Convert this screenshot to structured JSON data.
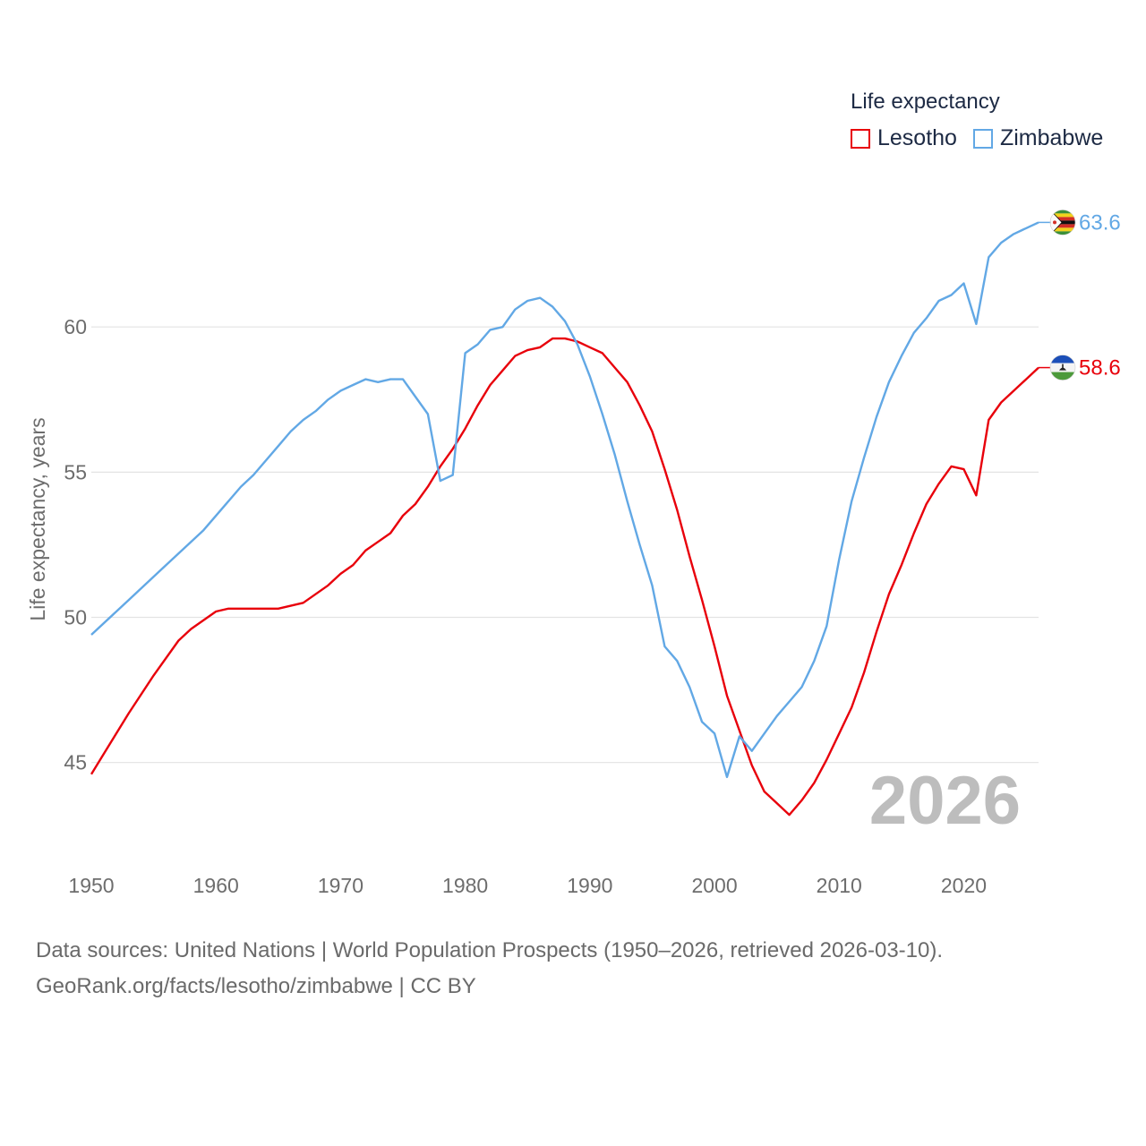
{
  "chart_data": {
    "type": "line",
    "ylabel": "Life expectancy, years",
    "xlim": [
      1950,
      2026
    ],
    "ylim": [
      42,
      65
    ],
    "x_ticks": [
      1950,
      1960,
      1970,
      1980,
      1990,
      2000,
      2010,
      2020
    ],
    "y_ticks": [
      45,
      50,
      55,
      60
    ],
    "grid": true,
    "year_display": "2026",
    "legend": {
      "title": "Life expectancy",
      "position": "top-right"
    },
    "series": [
      {
        "name": "Lesotho",
        "color": "#e8000b",
        "end_label": "58.6",
        "flag": "lesotho-flag",
        "x": [
          1950,
          1951,
          1953,
          1955,
          1957,
          1958,
          1960,
          1961,
          1963,
          1965,
          1967,
          1969,
          1970,
          1971,
          1972,
          1973,
          1974,
          1975,
          1976,
          1977,
          1978,
          1979,
          1980,
          1981,
          1982,
          1983,
          1984,
          1985,
          1986,
          1987,
          1988,
          1989,
          1990,
          1991,
          1992,
          1993,
          1994,
          1995,
          1996,
          1997,
          1998,
          1999,
          2000,
          2001,
          2002,
          2003,
          2004,
          2005,
          2006,
          2007,
          2008,
          2009,
          2010,
          2011,
          2012,
          2013,
          2014,
          2015,
          2016,
          2017,
          2018,
          2019,
          2020,
          2021,
          2022,
          2023,
          2024,
          2025,
          2026
        ],
        "values": [
          44.6,
          45.3,
          46.7,
          48.0,
          49.2,
          49.6,
          50.2,
          50.3,
          50.3,
          50.3,
          50.5,
          51.1,
          51.5,
          51.8,
          52.3,
          52.6,
          52.9,
          53.5,
          53.9,
          54.5,
          55.2,
          55.8,
          56.5,
          57.3,
          58.0,
          58.5,
          59.0,
          59.2,
          59.3,
          59.6,
          59.6,
          59.5,
          59.3,
          59.1,
          58.6,
          58.1,
          57.3,
          56.4,
          55.1,
          53.7,
          52.1,
          50.6,
          49.0,
          47.3,
          46.1,
          44.9,
          44.0,
          43.6,
          43.2,
          43.7,
          44.3,
          45.1,
          46.0,
          46.9,
          48.1,
          49.5,
          50.8,
          51.8,
          52.9,
          53.9,
          54.6,
          55.2,
          55.1,
          54.2,
          56.8,
          57.4,
          57.8,
          58.2,
          58.6
        ]
      },
      {
        "name": "Zimbabwe",
        "color": "#62a8e5",
        "end_label": "63.6",
        "flag": "zimbabwe-flag",
        "x": [
          1950,
          1953,
          1956,
          1959,
          1962,
          1963,
          1965,
          1966,
          1967,
          1968,
          1969,
          1970,
          1971,
          1972,
          1973,
          1974,
          1975,
          1976,
          1977,
          1978,
          1979,
          1980,
          1981,
          1982,
          1983,
          1984,
          1985,
          1986,
          1987,
          1988,
          1989,
          1990,
          1991,
          1992,
          1993,
          1994,
          1995,
          1996,
          1997,
          1998,
          1999,
          2000,
          2001,
          2002,
          2003,
          2004,
          2005,
          2006,
          2007,
          2008,
          2009,
          2010,
          2011,
          2012,
          2013,
          2014,
          2015,
          2016,
          2017,
          2018,
          2019,
          2020,
          2021,
          2022,
          2023,
          2024,
          2025,
          2026
        ],
        "values": [
          49.4,
          50.6,
          51.8,
          53.0,
          54.5,
          54.9,
          55.9,
          56.4,
          56.8,
          57.1,
          57.5,
          57.8,
          58.0,
          58.2,
          58.1,
          58.2,
          58.2,
          57.6,
          57.0,
          54.7,
          54.9,
          59.1,
          59.4,
          59.9,
          60.0,
          60.6,
          60.9,
          61.0,
          60.7,
          60.2,
          59.4,
          58.3,
          57.0,
          55.6,
          54.0,
          52.5,
          51.1,
          49.0,
          48.5,
          47.6,
          46.4,
          46.0,
          44.5,
          45.9,
          45.4,
          46.0,
          46.6,
          47.1,
          47.6,
          48.5,
          49.7,
          52.0,
          54.0,
          55.5,
          56.9,
          58.1,
          59.0,
          59.8,
          60.3,
          60.9,
          61.1,
          61.5,
          60.1,
          62.4,
          62.9,
          63.2,
          63.4,
          63.6
        ]
      }
    ]
  },
  "footer": {
    "line1": "Data sources: United Nations | World Population Prospects (1950–2026, retrieved 2026-03-10).",
    "line2": "GeoRank.org/facts/lesotho/zimbabwe | CC BY"
  }
}
